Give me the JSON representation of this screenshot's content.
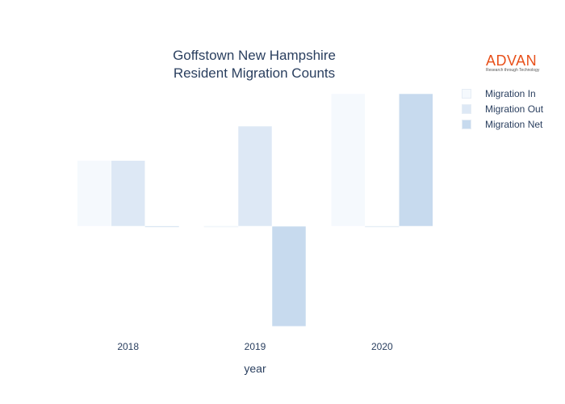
{
  "chart_data": {
    "type": "bar",
    "title_lines": [
      "Goffstown New Hampshire",
      "Resident Migration Counts"
    ],
    "xlabel": "year",
    "ylabel": "",
    "categories": [
      "2018",
      "2019",
      "2020"
    ],
    "series": [
      {
        "name": "Migration In",
        "color": "#f5f9fd",
        "values": [
          65,
          0,
          131
        ]
      },
      {
        "name": "Migration Out",
        "color": "#dde8f5",
        "values": [
          65,
          99,
          0
        ]
      },
      {
        "name": "Migration Net",
        "color": "#c7daee",
        "values": [
          0,
          -99,
          131
        ]
      }
    ],
    "ylim": [
      -100,
      131
    ],
    "y_axis_shown": false,
    "grid": false,
    "legend_position": "top-right"
  },
  "logo": {
    "name": "ADVAN",
    "tagline": "Research through Technology"
  }
}
